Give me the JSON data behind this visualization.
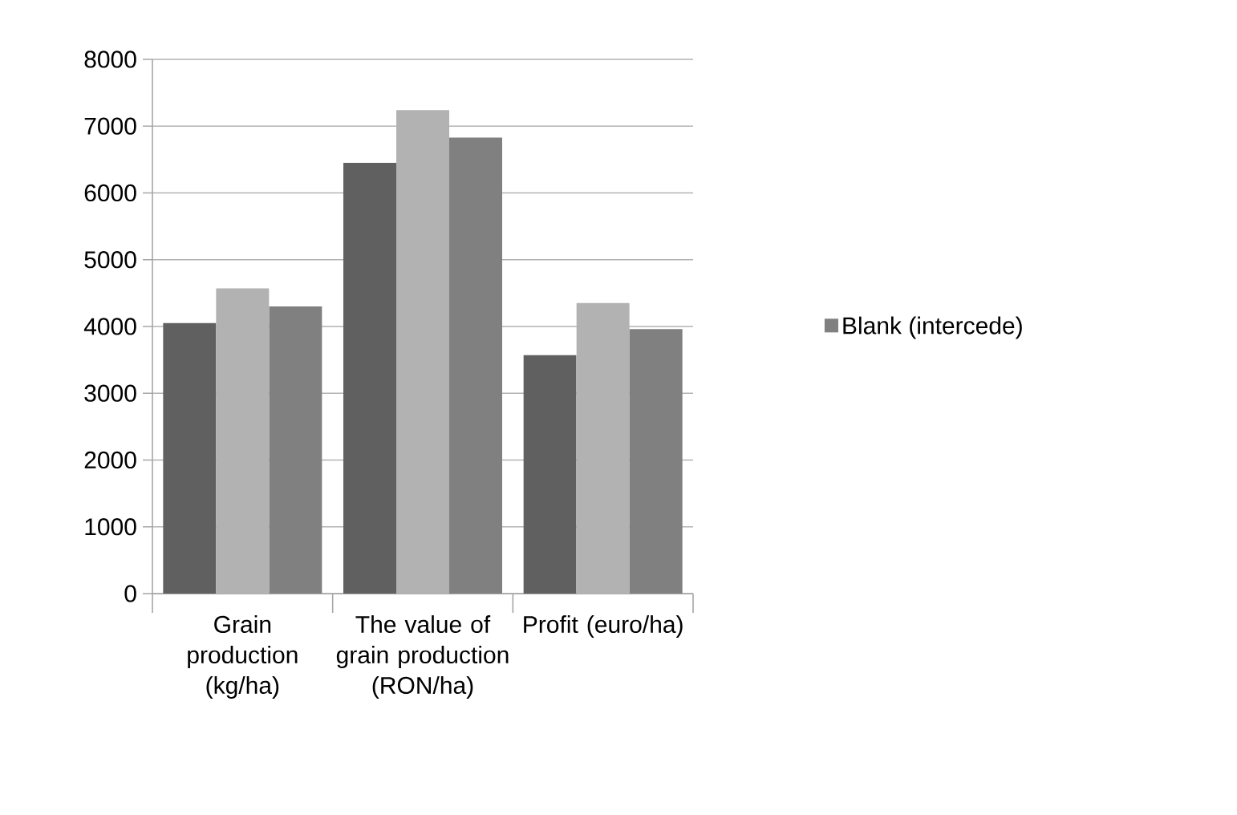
{
  "chart_data": {
    "type": "bar",
    "categories": [
      "Grain production (kg/ha)",
      "The value of grain production (RON/ha)",
      "Profit (euro/ha)"
    ],
    "series": [
      {
        "color": "#606060",
        "values": [
          4050,
          6450,
          3570
        ]
      },
      {
        "color": "#b2b2b2",
        "values": [
          4570,
          7240,
          4350
        ]
      },
      {
        "name": "Blank (intercede)",
        "color": "#808080",
        "values": [
          4300,
          6830,
          3960
        ]
      }
    ],
    "ylim": [
      0,
      8000
    ],
    "yticks": [
      0,
      1000,
      2000,
      3000,
      4000,
      5000,
      6000,
      7000,
      8000
    ],
    "grid": "y",
    "legend": "right"
  }
}
